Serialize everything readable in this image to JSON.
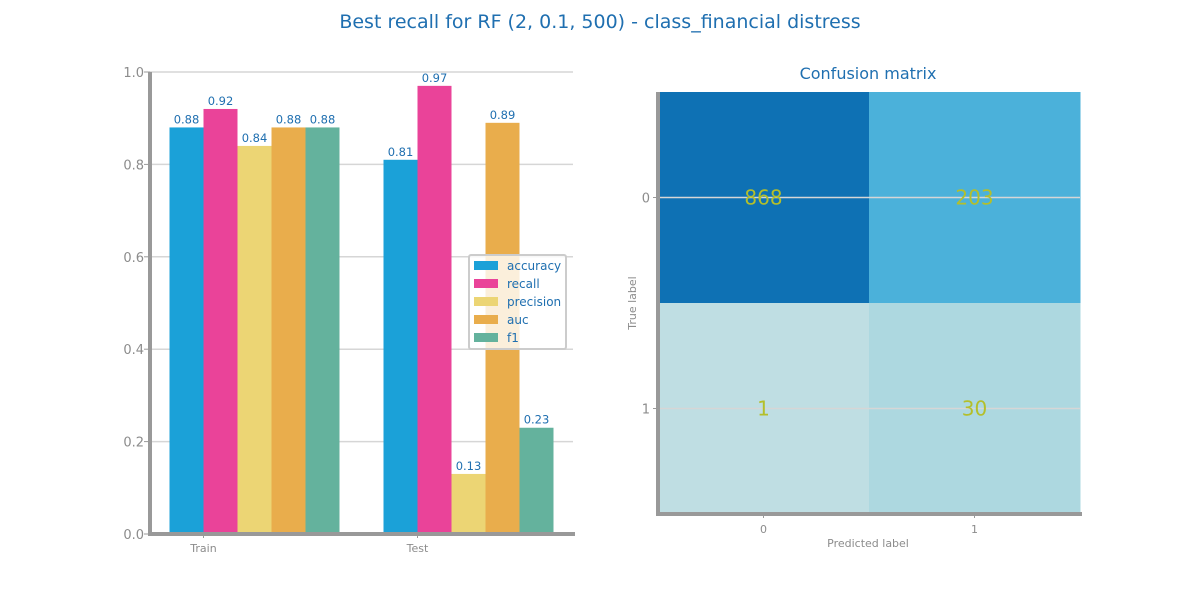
{
  "title": "Best recall for RF (2, 0.1, 500) - class_financial distress",
  "chart_data": [
    {
      "type": "bar",
      "categories": [
        "Train",
        "Test"
      ],
      "series": [
        {
          "name": "accuracy",
          "color": "#1ba1d8",
          "values": [
            0.88,
            0.81
          ]
        },
        {
          "name": "recall",
          "color": "#ea4399",
          "values": [
            0.92,
            0.97
          ]
        },
        {
          "name": "precision",
          "color": "#ecd574",
          "values": [
            0.84,
            0.13
          ]
        },
        {
          "name": "auc",
          "color": "#e9ad4c",
          "values": [
            0.88,
            0.89
          ]
        },
        {
          "name": "f1",
          "color": "#64b29d",
          "values": [
            0.88,
            0.23
          ]
        }
      ],
      "ylim": [
        0,
        1.0
      ],
      "yticks": [
        "0.0",
        "0.2",
        "0.4",
        "0.6",
        "0.8",
        "1.0"
      ],
      "grid": true,
      "legend": "center-right"
    },
    {
      "type": "heatmap",
      "title": "Confusion matrix",
      "xlabel": "Predicted label",
      "ylabel": "True label",
      "x_ticks": [
        "0",
        "1"
      ],
      "y_ticks": [
        "0",
        "1"
      ],
      "values": [
        [
          868,
          203
        ],
        [
          1,
          30
        ]
      ],
      "cell_colors": [
        [
          "#0e71b4",
          "#4bb1da"
        ],
        [
          "#bfdee3",
          "#add8e0"
        ]
      ]
    }
  ]
}
